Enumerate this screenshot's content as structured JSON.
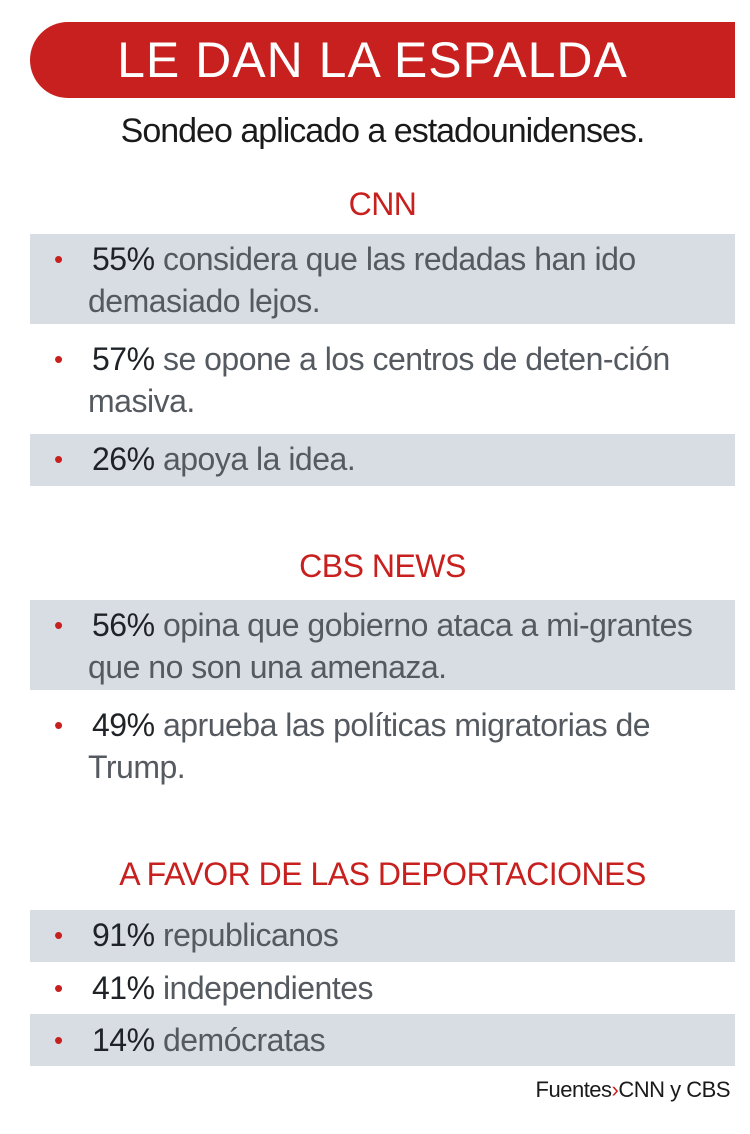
{
  "title": "LE DAN LA ESPALDA",
  "subtitle": "Sondeo aplicado a estadounidenses.",
  "sections": [
    {
      "heading": "CNN",
      "items": [
        {
          "pct": "55%",
          "text": " considera que las redadas han ido demasiado lejos."
        },
        {
          "pct": "57%",
          "text": " se opone a los centros de deten-ción masiva."
        },
        {
          "pct": "26%",
          "text": " apoya la idea."
        }
      ]
    },
    {
      "heading": "CBS NEWS",
      "items": [
        {
          "pct": "56%",
          "text": " opina que gobierno ataca a mi-grantes que no son una amenaza."
        },
        {
          "pct": "49%",
          "text": " aprueba las políticas migratorias de Trump."
        }
      ]
    },
    {
      "heading": "A FAVOR DE LAS DEPORTACIONES",
      "items": [
        {
          "pct": "91%",
          "text": " republicanos"
        },
        {
          "pct": "41%",
          "text": " independientes"
        },
        {
          "pct": "14%",
          "text": " demócratas"
        }
      ]
    }
  ],
  "bullet_char": "•",
  "source": {
    "label": "Fuentes",
    "separator": "›",
    "value": "CNN y CBS"
  },
  "colors": {
    "accent": "#c8201e",
    "shade": "#d8dce3"
  }
}
